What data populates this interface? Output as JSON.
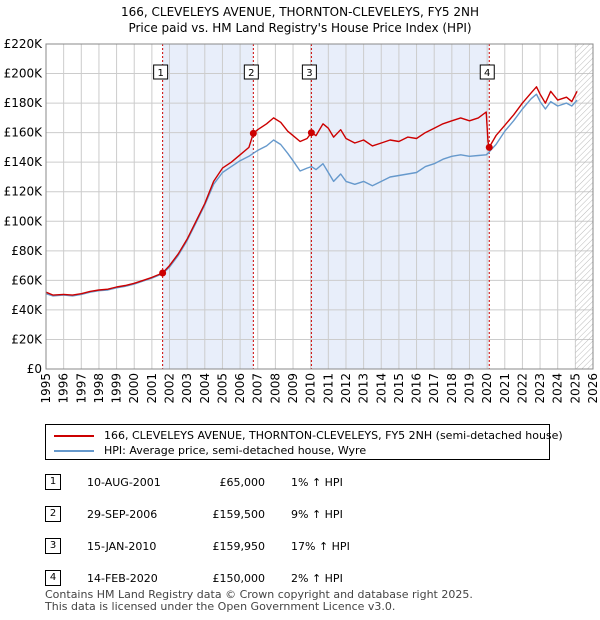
{
  "title": {
    "line1": "166, CLEVELEYS AVENUE, THORNTON-CLEVELEYS, FY5 2NH",
    "line2": "Price paid vs. HM Land Registry's House Price Index (HPI)"
  },
  "chart_data": {
    "type": "line",
    "title": "166, CLEVELEYS AVENUE, THORNTON-CLEVELEYS, FY5 2NH — Price paid vs. HM Land Registry's House Price Index (HPI)",
    "xlabel": "",
    "ylabel": "",
    "xlim": [
      1995,
      2026
    ],
    "ylim": [
      0,
      220000
    ],
    "x_ticks": [
      "1995",
      "1996",
      "1997",
      "1998",
      "1999",
      "2000",
      "2001",
      "2002",
      "2003",
      "2004",
      "2005",
      "2006",
      "2007",
      "2008",
      "2009",
      "2010",
      "2011",
      "2012",
      "2013",
      "2014",
      "2015",
      "2016",
      "2017",
      "2018",
      "2019",
      "2020",
      "2021",
      "2022",
      "2023",
      "2024",
      "2025",
      "2026"
    ],
    "y_ticks": [
      {
        "value": 0,
        "label": "£0"
      },
      {
        "value": 20000,
        "label": "£20K"
      },
      {
        "value": 40000,
        "label": "£40K"
      },
      {
        "value": 60000,
        "label": "£60K"
      },
      {
        "value": 80000,
        "label": "£80K"
      },
      {
        "value": 100000,
        "label": "£100K"
      },
      {
        "value": 120000,
        "label": "£120K"
      },
      {
        "value": 140000,
        "label": "£140K"
      },
      {
        "value": 160000,
        "label": "£160K"
      },
      {
        "value": 180000,
        "label": "£180K"
      },
      {
        "value": 200000,
        "label": "£200K"
      },
      {
        "value": 220000,
        "label": "£220K"
      }
    ],
    "grid": true,
    "colors": {
      "property": "#cc0000",
      "hpi": "#6699cc",
      "shade": "#e8eefa",
      "event_line": "#cc0000",
      "grid": "#cccccc"
    },
    "series": [
      {
        "name": "166, CLEVELEYS AVENUE, THORNTON-CLEVELEYS, FY5 2NH (semi-detached house)",
        "color": "#cc0000",
        "points": [
          [
            1995.0,
            52000
          ],
          [
            1995.4,
            50000
          ],
          [
            1996.0,
            50500
          ],
          [
            1996.5,
            50000
          ],
          [
            1997.0,
            51000
          ],
          [
            1997.5,
            52500
          ],
          [
            1998.0,
            53500
          ],
          [
            1998.5,
            54000
          ],
          [
            1999.0,
            55500
          ],
          [
            1999.5,
            56500
          ],
          [
            2000.0,
            58000
          ],
          [
            2000.5,
            60000
          ],
          [
            2001.0,
            62000
          ],
          [
            2001.61,
            65000
          ],
          [
            2002.0,
            70000
          ],
          [
            2002.5,
            78000
          ],
          [
            2003.0,
            88000
          ],
          [
            2003.5,
            100000
          ],
          [
            2004.0,
            112000
          ],
          [
            2004.5,
            127000
          ],
          [
            2005.0,
            136000
          ],
          [
            2005.5,
            140000
          ],
          [
            2006.0,
            145000
          ],
          [
            2006.5,
            150000
          ],
          [
            2006.75,
            159500
          ],
          [
            2007.0,
            162000
          ],
          [
            2007.5,
            166000
          ],
          [
            2007.9,
            170000
          ],
          [
            2008.3,
            167000
          ],
          [
            2008.7,
            161000
          ],
          [
            2009.0,
            158000
          ],
          [
            2009.4,
            154000
          ],
          [
            2009.8,
            156000
          ],
          [
            2010.04,
            159950
          ],
          [
            2010.3,
            158000
          ],
          [
            2010.7,
            166000
          ],
          [
            2011.0,
            163000
          ],
          [
            2011.3,
            157000
          ],
          [
            2011.7,
            162000
          ],
          [
            2012.0,
            156000
          ],
          [
            2012.5,
            153000
          ],
          [
            2013.0,
            155000
          ],
          [
            2013.5,
            151000
          ],
          [
            2014.0,
            153000
          ],
          [
            2014.5,
            155000
          ],
          [
            2015.0,
            154000
          ],
          [
            2015.5,
            157000
          ],
          [
            2016.0,
            156000
          ],
          [
            2016.5,
            160000
          ],
          [
            2017.0,
            163000
          ],
          [
            2017.5,
            166000
          ],
          [
            2018.0,
            168000
          ],
          [
            2018.5,
            170000
          ],
          [
            2019.0,
            168000
          ],
          [
            2019.5,
            170000
          ],
          [
            2019.95,
            174000
          ],
          [
            2020.05,
            154000
          ],
          [
            2020.12,
            150000
          ],
          [
            2020.5,
            158000
          ],
          [
            2021.0,
            165000
          ],
          [
            2021.5,
            172000
          ],
          [
            2022.0,
            180000
          ],
          [
            2022.5,
            187000
          ],
          [
            2022.8,
            191000
          ],
          [
            2023.0,
            186000
          ],
          [
            2023.3,
            180000
          ],
          [
            2023.6,
            188000
          ],
          [
            2024.0,
            182000
          ],
          [
            2024.5,
            184000
          ],
          [
            2024.8,
            181000
          ],
          [
            2025.1,
            188000
          ]
        ]
      },
      {
        "name": "HPI: Average price, semi-detached house, Wyre",
        "color": "#6699cc",
        "points": [
          [
            1995.0,
            51000
          ],
          [
            1995.4,
            49500
          ],
          [
            1996.0,
            50000
          ],
          [
            1996.5,
            49500
          ],
          [
            1997.0,
            50500
          ],
          [
            1997.5,
            52000
          ],
          [
            1998.0,
            53000
          ],
          [
            1998.5,
            53500
          ],
          [
            1999.0,
            55000
          ],
          [
            1999.5,
            56000
          ],
          [
            2000.0,
            57500
          ],
          [
            2000.5,
            59500
          ],
          [
            2001.0,
            61500
          ],
          [
            2001.61,
            64500
          ],
          [
            2002.0,
            69000
          ],
          [
            2002.5,
            77000
          ],
          [
            2003.0,
            87000
          ],
          [
            2003.5,
            99000
          ],
          [
            2004.0,
            111000
          ],
          [
            2004.5,
            125000
          ],
          [
            2005.0,
            133000
          ],
          [
            2005.5,
            137000
          ],
          [
            2006.0,
            141000
          ],
          [
            2006.5,
            144000
          ],
          [
            2006.75,
            146000
          ],
          [
            2007.0,
            148000
          ],
          [
            2007.5,
            151000
          ],
          [
            2007.9,
            155000
          ],
          [
            2008.3,
            152000
          ],
          [
            2008.7,
            146000
          ],
          [
            2009.0,
            141000
          ],
          [
            2009.4,
            134000
          ],
          [
            2009.8,
            136000
          ],
          [
            2010.04,
            137000
          ],
          [
            2010.3,
            135000
          ],
          [
            2010.7,
            139000
          ],
          [
            2011.0,
            133000
          ],
          [
            2011.3,
            127000
          ],
          [
            2011.7,
            132000
          ],
          [
            2012.0,
            127000
          ],
          [
            2012.5,
            125000
          ],
          [
            2013.0,
            127000
          ],
          [
            2013.5,
            124000
          ],
          [
            2014.0,
            127000
          ],
          [
            2014.5,
            130000
          ],
          [
            2015.0,
            131000
          ],
          [
            2015.5,
            132000
          ],
          [
            2016.0,
            133000
          ],
          [
            2016.5,
            137000
          ],
          [
            2017.0,
            139000
          ],
          [
            2017.5,
            142000
          ],
          [
            2018.0,
            144000
          ],
          [
            2018.5,
            145000
          ],
          [
            2019.0,
            144000
          ],
          [
            2019.5,
            144500
          ],
          [
            2019.95,
            145000
          ],
          [
            2020.05,
            146000
          ],
          [
            2020.12,
            147000
          ],
          [
            2020.5,
            152000
          ],
          [
            2021.0,
            161000
          ],
          [
            2021.5,
            168000
          ],
          [
            2022.0,
            176000
          ],
          [
            2022.5,
            183000
          ],
          [
            2022.8,
            186000
          ],
          [
            2023.0,
            181000
          ],
          [
            2023.3,
            176000
          ],
          [
            2023.6,
            181000
          ],
          [
            2024.0,
            178000
          ],
          [
            2024.5,
            180000
          ],
          [
            2024.8,
            178000
          ],
          [
            2025.1,
            182000
          ]
        ]
      }
    ],
    "events": [
      {
        "id": "1",
        "x": 2001.61,
        "value": 65000,
        "date": "10-AUG-2001",
        "price": "£65,000",
        "hpi": "1% ↑ HPI"
      },
      {
        "id": "2",
        "x": 2006.75,
        "value": 159500,
        "date": "29-SEP-2006",
        "price": "£159,500",
        "hpi": "9% ↑ HPI"
      },
      {
        "id": "3",
        "x": 2010.04,
        "value": 159950,
        "date": "15-JAN-2010",
        "price": "£159,950",
        "hpi": "17% ↑ HPI"
      },
      {
        "id": "4",
        "x": 2020.12,
        "value": 150000,
        "date": "14-FEB-2020",
        "price": "£150,000",
        "hpi": "2% ↑ HPI"
      }
    ],
    "shaded_ranges": [
      [
        2001.61,
        2006.75
      ],
      [
        2010.04,
        2020.12
      ]
    ],
    "hatched_from": 2025.0
  },
  "legend": {
    "property_label": "166, CLEVELEYS AVENUE, THORNTON-CLEVELEYS, FY5 2NH (semi-detached house)",
    "hpi_label": "HPI: Average price, semi-detached house, Wyre"
  },
  "footer": {
    "line1": "Contains HM Land Registry data © Crown copyright and database right 2025.",
    "line2": "This data is licensed under the Open Government Licence v3.0."
  }
}
